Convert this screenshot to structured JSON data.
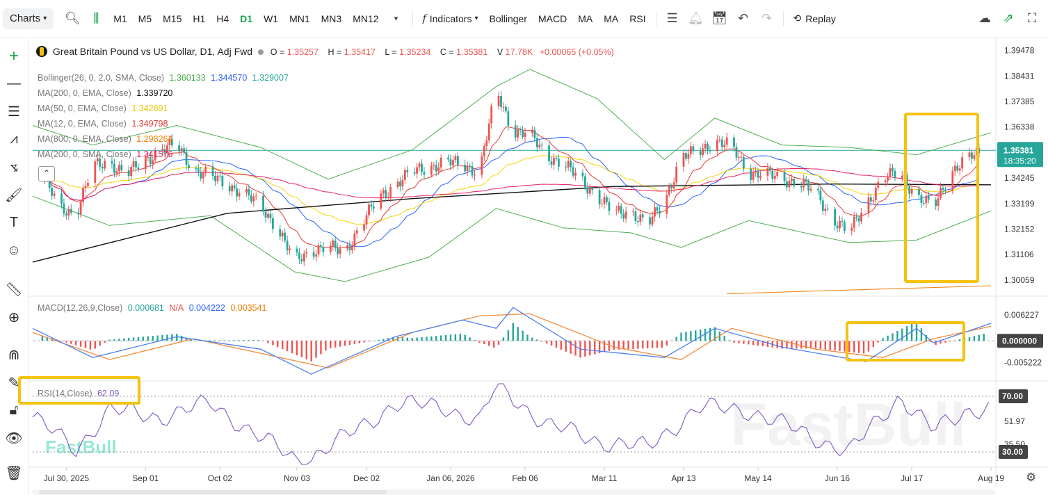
{
  "toolbar": {
    "charts_label": "Charts",
    "timeframes": [
      "M1",
      "M5",
      "M15",
      "H1",
      "H4",
      "D1",
      "W1",
      "MN1",
      "MN3",
      "MN12"
    ],
    "active_timeframe": "D1",
    "indicators_label": "Indicators",
    "quick_indicators": [
      "Bollinger",
      "MACD",
      "MA",
      "MA",
      "RSI"
    ],
    "replay_label": "Replay"
  },
  "symbol": {
    "name": "Great Britain Pound vs US Dollar, D1, Adj Fwd",
    "open_label": "O =",
    "open": "1.35257",
    "high_label": "H =",
    "high": "1.35417",
    "low_label": "L =",
    "low": "1.35234",
    "close_label": "C =",
    "close": "1.35381",
    "volume_label": "V",
    "volume": "17.78K",
    "change": "+0.00065 (+0.05%)"
  },
  "indicators": {
    "bollinger": {
      "label": "Bollinger(26, 0, 2.0, SMA, Close)",
      "upper": "1.360133",
      "middle": "1.344570",
      "lower": "1.329007"
    },
    "ma200": {
      "label": "MA(200, 0, EMA, Close)",
      "value": "1.339720"
    },
    "ma50": {
      "label": "MA(50, 0, EMA, Close)",
      "value": "1.342691"
    },
    "ma12": {
      "label": "MA(12, 0, EMA, Close)",
      "value": "1.349798"
    },
    "ma800": {
      "label": "MA(800, 0, EMA, Close)",
      "value": "1.298264"
    },
    "ma200sma": {
      "label": "MA(200, 0, SMA, Close)",
      "value": "1.341576"
    },
    "macd": {
      "label": "MACD(12,26,9,Close)",
      "hist": "0.000681",
      "na": "N/A",
      "macd": "0.004222",
      "signal": "0.003541"
    },
    "rsi": {
      "label": "RSI(14,Close)",
      "value": "62.09"
    }
  },
  "price_axis": {
    "labels": [
      "1.39478",
      "1.38431",
      "1.37385",
      "1.36338",
      "1.35381",
      "1.34245",
      "1.33199",
      "1.32152",
      "1.31106",
      "1.30059"
    ],
    "current_price": "1.35381",
    "countdown": "18:35:20"
  },
  "macd_axis": {
    "labels": [
      "0.006227",
      "0.000000",
      "-0.005222"
    ]
  },
  "rsi_axis": {
    "labels": [
      "70.00",
      "51.97",
      "35.50",
      "30.00"
    ]
  },
  "time_axis": {
    "labels": [
      "Jul 30, 2025",
      "Sep 01",
      "Oct 02",
      "Nov 03",
      "Dec 02",
      "Jan 06, 2026",
      "Feb 06",
      "Mar 11",
      "Apr 13",
      "May 14",
      "Jun 16",
      "Jul 17",
      "Aug 19"
    ]
  },
  "watermark": "FastBull",
  "colors": {
    "up": "#ef5350",
    "down": "#26a69a",
    "bollinger": "#4caf50",
    "ma200": "#111111",
    "ma50": "#f5d60a",
    "ma12": "#e53935",
    "ma800": "#f57c00",
    "ma200sma": "#e91e63",
    "macd_line": "#4c7ff0",
    "signal_line": "#f5893b",
    "rsi_line": "#7e57c2",
    "highlight": "#f5c211"
  },
  "chart_data": {
    "type": "candlestick",
    "title": "Great Britain Pound vs US Dollar, D1, Adj Fwd",
    "x_start": "2025-07-16",
    "x_end": "2026-08-21",
    "ylim": [
      1.2943,
      1.3995
    ],
    "close_series": [
      [
        "2025-07-20",
        1.344
      ],
      [
        "2025-07-27",
        1.33
      ],
      [
        "2025-08-03",
        1.328
      ],
      [
        "2025-08-10",
        1.347
      ],
      [
        "2025-08-17",
        1.349
      ],
      [
        "2025-08-24",
        1.344
      ],
      [
        "2025-08-31",
        1.349
      ],
      [
        "2025-09-07",
        1.354
      ],
      [
        "2025-09-14",
        1.356
      ],
      [
        "2025-09-21",
        1.346
      ],
      [
        "2025-09-28",
        1.343
      ],
      [
        "2025-10-05",
        1.34
      ],
      [
        "2025-10-12",
        1.336
      ],
      [
        "2025-10-19",
        1.331
      ],
      [
        "2025-10-26",
        1.322
      ],
      [
        "2025-11-02",
        1.308
      ],
      [
        "2025-11-09",
        1.313
      ],
      [
        "2025-11-16",
        1.314
      ],
      [
        "2025-11-23",
        1.312
      ],
      [
        "2025-11-30",
        1.324
      ],
      [
        "2025-12-07",
        1.334
      ],
      [
        "2025-12-14",
        1.34
      ],
      [
        "2025-12-21",
        1.345
      ],
      [
        "2025-12-28",
        1.347
      ],
      [
        "2026-01-04",
        1.349
      ],
      [
        "2026-01-11",
        1.348
      ],
      [
        "2026-01-18",
        1.345
      ],
      [
        "2026-01-25",
        1.378
      ],
      [
        "2026-02-01",
        1.362
      ],
      [
        "2026-02-08",
        1.36
      ],
      [
        "2026-02-15",
        1.352
      ],
      [
        "2026-02-22",
        1.348
      ],
      [
        "2026-03-01",
        1.342
      ],
      [
        "2026-03-08",
        1.335
      ],
      [
        "2026-03-15",
        1.328
      ],
      [
        "2026-03-22",
        1.329
      ],
      [
        "2026-03-29",
        1.323
      ],
      [
        "2026-04-05",
        1.333
      ],
      [
        "2026-04-12",
        1.351
      ],
      [
        "2026-04-19",
        1.353
      ],
      [
        "2026-04-26",
        1.358
      ],
      [
        "2026-05-03",
        1.355
      ],
      [
        "2026-05-10",
        1.345
      ],
      [
        "2026-05-17",
        1.344
      ],
      [
        "2026-05-24",
        1.342
      ],
      [
        "2026-05-31",
        1.341
      ],
      [
        "2026-06-07",
        1.336
      ],
      [
        "2026-06-14",
        1.326
      ],
      [
        "2026-06-21",
        1.32
      ],
      [
        "2026-06-28",
        1.332
      ],
      [
        "2026-07-05",
        1.342
      ],
      [
        "2026-07-12",
        1.345
      ],
      [
        "2026-07-19",
        1.335
      ],
      [
        "2026-07-26",
        1.33
      ],
      [
        "2026-08-02",
        1.345
      ],
      [
        "2026-08-09",
        1.35
      ],
      [
        "2026-08-16",
        1.3538
      ]
    ],
    "bollinger_upper": [
      [
        "2025-07-16",
        1.364
      ],
      [
        "2025-08-10",
        1.356
      ],
      [
        "2025-09-14",
        1.364
      ],
      [
        "2025-10-19",
        1.355
      ],
      [
        "2025-11-16",
        1.342
      ],
      [
        "2025-12-21",
        1.354
      ],
      [
        "2026-01-25",
        1.38
      ],
      [
        "2026-02-08",
        1.387
      ],
      [
        "2026-03-08",
        1.375
      ],
      [
        "2026-04-05",
        1.35
      ],
      [
        "2026-04-26",
        1.367
      ],
      [
        "2026-05-24",
        1.356
      ],
      [
        "2026-06-21",
        1.355
      ],
      [
        "2026-07-19",
        1.352
      ],
      [
        "2026-08-19",
        1.361
      ]
    ],
    "bollinger_lower": [
      [
        "2025-07-16",
        1.335
      ],
      [
        "2025-08-17",
        1.323
      ],
      [
        "2025-09-28",
        1.327
      ],
      [
        "2025-11-02",
        1.304
      ],
      [
        "2025-11-23",
        1.3
      ],
      [
        "2025-12-28",
        1.31
      ],
      [
        "2026-01-25",
        1.33
      ],
      [
        "2026-02-22",
        1.322
      ],
      [
        "2026-03-22",
        1.32
      ],
      [
        "2026-04-12",
        1.314
      ],
      [
        "2026-05-10",
        1.325
      ],
      [
        "2026-06-21",
        1.316
      ],
      [
        "2026-07-19",
        1.317
      ],
      [
        "2026-08-19",
        1.329
      ]
    ],
    "ma200_ema": [
      [
        "2025-07-16",
        1.308
      ],
      [
        "2025-10-05",
        1.328
      ],
      [
        "2025-12-21",
        1.334
      ],
      [
        "2026-03-15",
        1.339
      ],
      [
        "2026-06-14",
        1.34
      ],
      [
        "2026-08-19",
        1.3397
      ]
    ],
    "ma800_ema": [
      [
        "2026-05-01",
        1.295
      ],
      [
        "2026-08-19",
        1.2983
      ]
    ],
    "macd": {
      "ylim": [
        -0.0093,
        0.0104
      ],
      "macd_line": [
        [
          "2025-07-16",
          0.003
        ],
        [
          "2025-08-10",
          -0.004
        ],
        [
          "2025-09-14",
          0.001
        ],
        [
          "2025-10-19",
          -0.002
        ],
        [
          "2025-11-09",
          -0.008
        ],
        [
          "2025-12-14",
          0.001
        ],
        [
          "2026-01-11",
          0.005
        ],
        [
          "2026-01-25",
          0.003
        ],
        [
          "2026-02-01",
          0.008
        ],
        [
          "2026-03-01",
          -0.002
        ],
        [
          "2026-04-05",
          -0.004
        ],
        [
          "2026-04-26",
          0.003
        ],
        [
          "2026-05-24",
          -0.0015
        ],
        [
          "2026-06-28",
          -0.005
        ],
        [
          "2026-07-19",
          0.003
        ],
        [
          "2026-07-26",
          -0.0005
        ],
        [
          "2026-08-19",
          0.0042
        ]
      ],
      "signal_line": [
        [
          "2025-07-16",
          0.002
        ],
        [
          "2025-08-17",
          -0.0045
        ],
        [
          "2025-09-21",
          0.0005
        ],
        [
          "2025-11-16",
          -0.0065
        ],
        [
          "2025-12-21",
          0.002
        ],
        [
          "2026-01-18",
          0.006
        ],
        [
          "2026-02-08",
          0.0065
        ],
        [
          "2026-03-15",
          -0.0015
        ],
        [
          "2026-04-12",
          -0.0045
        ],
        [
          "2026-05-03",
          0.003
        ],
        [
          "2026-06-07",
          -0.002
        ],
        [
          "2026-07-05",
          -0.004
        ],
        [
          "2026-07-26",
          0.0005
        ],
        [
          "2026-08-19",
          0.0035
        ]
      ]
    },
    "rsi": {
      "ylim": [
        20,
        80
      ],
      "values": [
        [
          "2025-07-16",
          55
        ],
        [
          "2025-08-03",
          32
        ],
        [
          "2025-08-17",
          60
        ],
        [
          "2025-09-07",
          55
        ],
        [
          "2025-09-28",
          65
        ],
        [
          "2025-10-19",
          40
        ],
        [
          "2025-11-05",
          22
        ],
        [
          "2025-11-30",
          48
        ],
        [
          "2025-12-14",
          65
        ],
        [
          "2026-01-04",
          62
        ],
        [
          "2026-01-18",
          52
        ],
        [
          "2026-01-25",
          78
        ],
        [
          "2026-02-15",
          50
        ],
        [
          "2026-03-08",
          38
        ],
        [
          "2026-03-29",
          33
        ],
        [
          "2026-04-19",
          62
        ],
        [
          "2026-05-10",
          60
        ],
        [
          "2026-05-31",
          45
        ],
        [
          "2026-06-21",
          30
        ],
        [
          "2026-07-12",
          70
        ],
        [
          "2026-07-26",
          45
        ],
        [
          "2026-08-09",
          60
        ],
        [
          "2026-08-19",
          62
        ]
      ]
    }
  }
}
